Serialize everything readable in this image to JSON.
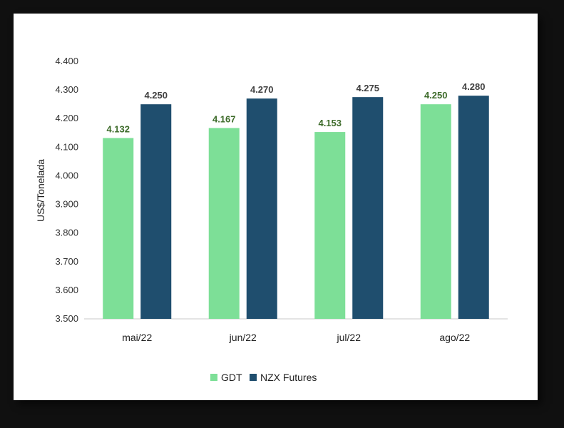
{
  "chart_data": {
    "type": "bar",
    "categories": [
      "mai/22",
      "jun/22",
      "jul/22",
      "ago/22"
    ],
    "series": [
      {
        "name": "GDT",
        "values": [
          4132,
          4167,
          4153,
          4250
        ],
        "labels": [
          "4.132",
          "4.167",
          "4.153",
          "4.250"
        ],
        "color": "#7ddf97",
        "label_color": "#3d6b2a"
      },
      {
        "name": "NZX Futures",
        "values": [
          4250,
          4270,
          4275,
          4280
        ],
        "labels": [
          "4.250",
          "4.270",
          "4.275",
          "4.280"
        ],
        "color": "#1f4e6e",
        "label_color": "#404040"
      }
    ],
    "ylabel": "US$/Tonelada",
    "ylim": [
      3500,
      4400
    ],
    "yticks": [
      3500,
      3600,
      3700,
      3800,
      3900,
      4000,
      4100,
      4200,
      4300,
      4400
    ],
    "ytick_labels": [
      "3.500",
      "3.600",
      "3.700",
      "3.800",
      "3.900",
      "4.000",
      "4.100",
      "4.200",
      "4.300",
      "4.400"
    ],
    "grid": false,
    "legend": "bottom"
  }
}
